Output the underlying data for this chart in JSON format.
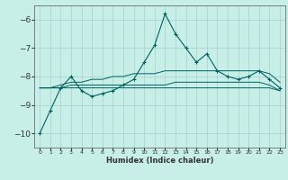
{
  "xlabel": "Humidex (Indice chaleur)",
  "ylabel": "",
  "background_color": "#c8eee8",
  "grid_color": "#a8d8d0",
  "line_color": "#006060",
  "x_data": [
    0,
    1,
    2,
    3,
    4,
    5,
    6,
    7,
    8,
    9,
    10,
    11,
    12,
    13,
    14,
    15,
    16,
    17,
    18,
    19,
    20,
    21,
    22,
    23
  ],
  "y_main": [
    -10.0,
    -9.2,
    -8.4,
    -8.0,
    -8.5,
    -8.7,
    -8.6,
    -8.5,
    -8.3,
    -8.1,
    -7.5,
    -6.9,
    -5.8,
    -6.5,
    -7.0,
    -7.5,
    -7.2,
    -7.8,
    -8.0,
    -8.1,
    -8.0,
    -7.8,
    -8.1,
    -8.4
  ],
  "y_line2": [
    -8.4,
    -8.4,
    -8.3,
    -8.2,
    -8.2,
    -8.1,
    -8.1,
    -8.0,
    -8.0,
    -7.9,
    -7.9,
    -7.9,
    -7.8,
    -7.8,
    -7.8,
    -7.8,
    -7.8,
    -7.8,
    -7.8,
    -7.8,
    -7.8,
    -7.8,
    -7.9,
    -8.2
  ],
  "y_line3": [
    -8.4,
    -8.4,
    -8.4,
    -8.3,
    -8.3,
    -8.3,
    -8.3,
    -8.3,
    -8.3,
    -8.3,
    -8.3,
    -8.3,
    -8.3,
    -8.2,
    -8.2,
    -8.2,
    -8.2,
    -8.2,
    -8.2,
    -8.2,
    -8.2,
    -8.2,
    -8.3,
    -8.5
  ],
  "y_line4": [
    -8.4,
    -8.4,
    -8.4,
    -8.4,
    -8.4,
    -8.4,
    -8.4,
    -8.4,
    -8.4,
    -8.4,
    -8.4,
    -8.4,
    -8.4,
    -8.4,
    -8.4,
    -8.4,
    -8.4,
    -8.4,
    -8.4,
    -8.4,
    -8.4,
    -8.4,
    -8.4,
    -8.5
  ],
  "ylim": [
    -10.5,
    -5.5
  ],
  "xlim": [
    -0.5,
    23.5
  ],
  "yticks": [
    -10,
    -9,
    -8,
    -7,
    -6
  ],
  "xticks": [
    0,
    1,
    2,
    3,
    4,
    5,
    6,
    7,
    8,
    9,
    10,
    11,
    12,
    13,
    14,
    15,
    16,
    17,
    18,
    19,
    20,
    21,
    22,
    23
  ],
  "xlabel_fontsize": 6.0,
  "ytick_fontsize": 6.5,
  "xtick_fontsize": 4.5
}
